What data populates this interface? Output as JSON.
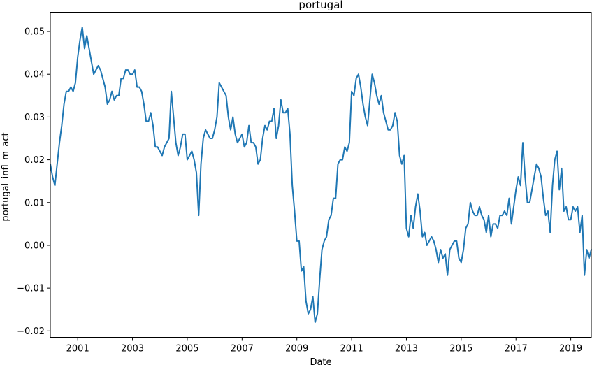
{
  "chart_data": {
    "type": "line",
    "title": "portugal",
    "xlabel": "Date",
    "ylabel": "portugal_infl_m_act",
    "xlim": [
      2000.0,
      2019.75
    ],
    "ylim": [
      -0.0215,
      0.0545
    ],
    "grid": false,
    "legend": "none",
    "x_ticks": [
      2001,
      2003,
      2005,
      2007,
      2009,
      2011,
      2013,
      2015,
      2017,
      2019
    ],
    "x_tick_labels": [
      "2001",
      "2003",
      "2005",
      "2007",
      "2009",
      "2011",
      "2013",
      "2015",
      "2017",
      "2019"
    ],
    "y_ticks": [
      -0.02,
      -0.01,
      0.0,
      0.01,
      0.02,
      0.03,
      0.04,
      0.05
    ],
    "y_tick_labels": [
      "−0.02",
      "−0.01",
      "0.00",
      "0.01",
      "0.02",
      "0.03",
      "0.04",
      "0.05"
    ],
    "series": [
      {
        "color": "#1f77b4",
        "start": "2000-01",
        "frequency": "monthly",
        "values": [
          0.019,
          0.016,
          0.014,
          0.019,
          0.024,
          0.028,
          0.033,
          0.036,
          0.036,
          0.037,
          0.036,
          0.038,
          0.044,
          0.048,
          0.051,
          0.046,
          0.049,
          0.046,
          0.043,
          0.04,
          0.041,
          0.042,
          0.041,
          0.039,
          0.037,
          0.033,
          0.034,
          0.036,
          0.034,
          0.035,
          0.035,
          0.039,
          0.039,
          0.041,
          0.041,
          0.04,
          0.04,
          0.041,
          0.037,
          0.037,
          0.036,
          0.033,
          0.029,
          0.029,
          0.031,
          0.028,
          0.023,
          0.023,
          0.022,
          0.021,
          0.023,
          0.024,
          0.025,
          0.036,
          0.03,
          0.024,
          0.021,
          0.023,
          0.026,
          0.026,
          0.02,
          0.021,
          0.022,
          0.02,
          0.017,
          0.007,
          0.019,
          0.025,
          0.027,
          0.026,
          0.025,
          0.025,
          0.027,
          0.03,
          0.038,
          0.037,
          0.036,
          0.035,
          0.03,
          0.027,
          0.03,
          0.026,
          0.024,
          0.025,
          0.026,
          0.023,
          0.024,
          0.028,
          0.024,
          0.024,
          0.023,
          0.019,
          0.02,
          0.025,
          0.028,
          0.027,
          0.029,
          0.029,
          0.032,
          0.025,
          0.028,
          0.034,
          0.031,
          0.031,
          0.032,
          0.026,
          0.014,
          0.008,
          0.001,
          0.001,
          -0.006,
          -0.005,
          -0.013,
          -0.016,
          -0.015,
          -0.012,
          -0.018,
          -0.016,
          -0.008,
          -0.001,
          0.001,
          0.002,
          0.006,
          0.007,
          0.011,
          0.011,
          0.019,
          0.02,
          0.02,
          0.023,
          0.022,
          0.024,
          0.036,
          0.035,
          0.039,
          0.04,
          0.037,
          0.033,
          0.03,
          0.028,
          0.034,
          0.04,
          0.038,
          0.035,
          0.033,
          0.035,
          0.031,
          0.029,
          0.027,
          0.027,
          0.028,
          0.031,
          0.029,
          0.021,
          0.019,
          0.021,
          0.004,
          0.002,
          0.007,
          0.004,
          0.009,
          0.012,
          0.008,
          0.002,
          0.003,
          0.0,
          0.001,
          0.002,
          0.001,
          -0.001,
          -0.004,
          -0.001,
          -0.003,
          -0.002,
          -0.007,
          -0.001,
          0.0,
          0.001,
          0.001,
          -0.003,
          -0.004,
          -0.001,
          0.004,
          0.005,
          0.01,
          0.008,
          0.007,
          0.007,
          0.009,
          0.007,
          0.006,
          0.003,
          0.007,
          0.002,
          0.005,
          0.005,
          0.004,
          0.007,
          0.007,
          0.008,
          0.007,
          0.011,
          0.005,
          0.009,
          0.013,
          0.016,
          0.014,
          0.024,
          0.016,
          0.01,
          0.01,
          0.013,
          0.016,
          0.019,
          0.018,
          0.016,
          0.011,
          0.007,
          0.008,
          0.003,
          0.014,
          0.02,
          0.022,
          0.013,
          0.018,
          0.008,
          0.009,
          0.006,
          0.006,
          0.009,
          0.008,
          0.009,
          0.003,
          0.007,
          -0.007,
          -0.001,
          -0.003,
          -0.001
        ]
      }
    ]
  }
}
